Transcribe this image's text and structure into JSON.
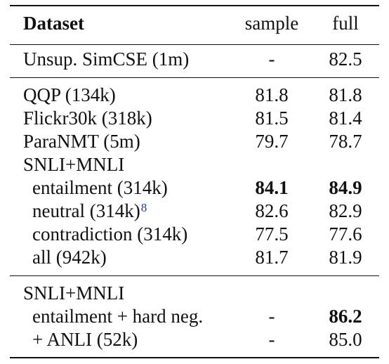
{
  "table": {
    "header": {
      "dataset": "Dataset",
      "sample": "sample",
      "full": "full"
    },
    "groups": [
      {
        "rows": [
          {
            "label": "Unsup. SimCSE (1m)",
            "sample": "-",
            "full": "82.5"
          }
        ]
      },
      {
        "rows": [
          {
            "label": "QQP (134k)",
            "sample": "81.8",
            "full": "81.8"
          },
          {
            "label": "Flickr30k (318k)",
            "sample": "81.5",
            "full": "81.4"
          },
          {
            "label": "ParaNMT (5m)",
            "sample": "79.7",
            "full": "78.7"
          },
          {
            "label": "SNLI+MNLI",
            "sample": "",
            "full": ""
          },
          {
            "label": "entailment (314k)",
            "sample": "84.1",
            "full": "84.9",
            "sample_bold": true,
            "full_bold": true
          },
          {
            "label": "neutral (314k)",
            "footnote": "8",
            "sample": "82.6",
            "full": "82.9"
          },
          {
            "label": "contradiction (314k)",
            "sample": "77.5",
            "full": "77.6"
          },
          {
            "label": "all (942k)",
            "sample": "81.7",
            "full": "81.9"
          }
        ]
      },
      {
        "rows": [
          {
            "label": "SNLI+MNLI",
            "sample": "",
            "full": ""
          },
          {
            "label": "entailment + hard neg.",
            "sample": "-",
            "full": "86.2",
            "full_bold": true
          },
          {
            "label": "+ ANLI (52k)",
            "sample": "-",
            "full": "85.0"
          }
        ]
      }
    ]
  }
}
